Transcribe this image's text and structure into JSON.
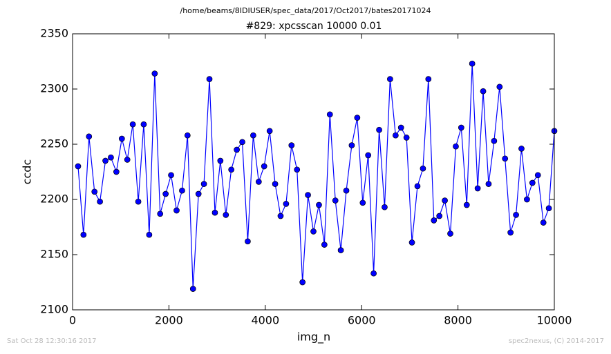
{
  "chart_data": {
    "type": "line",
    "suptitle": "/home/beams/8IDIUSER/spec_data/2017/Oct2017/bates20171024",
    "title": "#829: xpcsscan 10000 0.01",
    "xlabel": "img_n",
    "ylabel": "ccdc",
    "footer_left": "Sat Oct 28 12:30:16 2017",
    "footer_right": "spec2nexus, (C) 2014-2017",
    "xlim": [
      0,
      10000
    ],
    "xticks": [
      0,
      2000,
      4000,
      6000,
      8000,
      10000
    ],
    "ylim": [
      2100,
      2350
    ],
    "yticks": [
      2100,
      2150,
      2200,
      2250,
      2300,
      2350
    ],
    "grid": false,
    "series": [
      {
        "color": "#0000ff",
        "x": [
          114,
          227,
          341,
          455,
          568,
          682,
          795,
          909,
          1023,
          1136,
          1250,
          1364,
          1477,
          1591,
          1705,
          1818,
          1932,
          2045,
          2159,
          2273,
          2386,
          2500,
          2614,
          2727,
          2841,
          2955,
          3068,
          3182,
          3295,
          3409,
          3523,
          3636,
          3750,
          3864,
          3977,
          4091,
          4205,
          4318,
          4432,
          4545,
          4659,
          4773,
          4886,
          5000,
          5114,
          5227,
          5341,
          5455,
          5568,
          5682,
          5795,
          5909,
          6023,
          6136,
          6250,
          6364,
          6477,
          6591,
          6705,
          6818,
          6932,
          7045,
          7159,
          7273,
          7386,
          7500,
          7614,
          7727,
          7841,
          7955,
          8068,
          8182,
          8295,
          8409,
          8523,
          8636,
          8750,
          8864,
          8977,
          9091,
          9205,
          9318,
          9432,
          9545,
          9659,
          9773,
          9886,
          10000
        ],
        "values": [
          2230,
          2168,
          2257,
          2207,
          2198,
          2235,
          2238,
          2225,
          2255,
          2236,
          2268,
          2198,
          2268,
          2168,
          2314,
          2187,
          2205,
          2222,
          2190,
          2208,
          2258,
          2119,
          2205,
          2214,
          2309,
          2188,
          2235,
          2186,
          2227,
          2245,
          2252,
          2162,
          2258,
          2216,
          2230,
          2262,
          2214,
          2185,
          2196,
          2249,
          2227,
          2125,
          2204,
          2171,
          2195,
          2159,
          2277,
          2199,
          2154,
          2208,
          2249,
          2274,
          2197,
          2240,
          2133,
          2263,
          2193,
          2309,
          2258,
          2265,
          2256,
          2161,
          2212,
          2228,
          2309,
          2181,
          2185,
          2199,
          2169,
          2248,
          2265,
          2195,
          2323,
          2210,
          2298,
          2214,
          2253,
          2302,
          2237,
          2170,
          2186,
          2246,
          2200,
          2215,
          2222,
          2179,
          2192,
          2262
        ]
      }
    ]
  }
}
